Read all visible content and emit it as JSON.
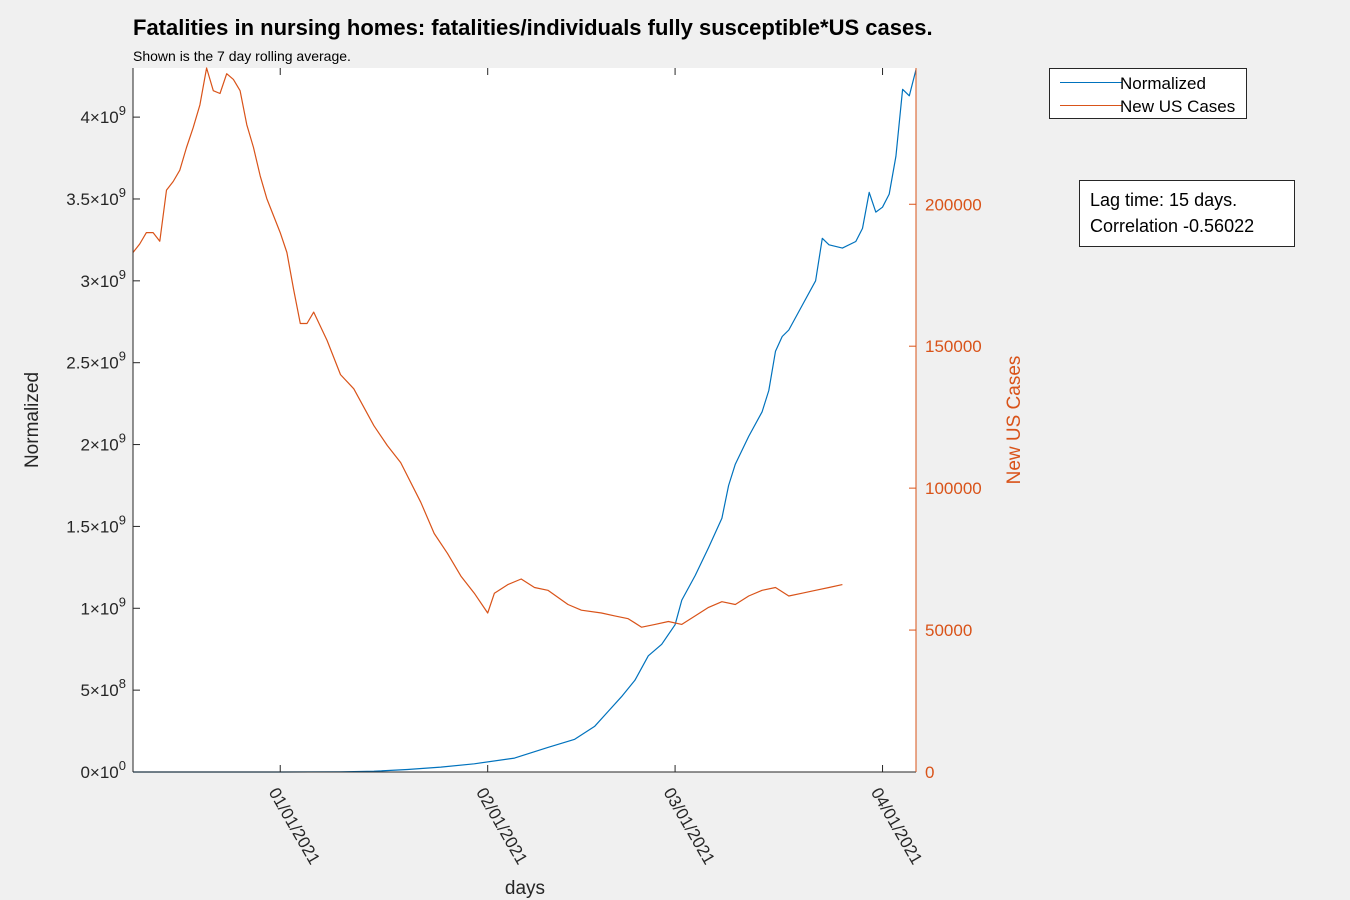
{
  "chart_data": {
    "type": "line",
    "title": "Fatalities in nursing homes: fatalities/individuals fully susceptible*US cases.",
    "subtitle": "Shown is the 7 day rolling average.",
    "xlabel": "days",
    "ylabel_left": "Normalized",
    "ylabel_right": "New US Cases",
    "x_range": [
      "2020-12-10",
      "2021-04-06"
    ],
    "x_ticks": [
      "01/01/2021",
      "02/01/2021",
      "03/01/2021",
      "04/01/2021"
    ],
    "y_left_range": [
      0,
      4300000000
    ],
    "y_left_ticks": [
      {
        "value": 0,
        "mant": "0",
        "exp": "0"
      },
      {
        "value": 500000000,
        "mant": "5",
        "exp": "8"
      },
      {
        "value": 1000000000,
        "mant": "1",
        "exp": "9"
      },
      {
        "value": 1500000000,
        "mant": "1.5",
        "exp": "9"
      },
      {
        "value": 2000000000,
        "mant": "2",
        "exp": "9"
      },
      {
        "value": 2500000000,
        "mant": "2.5",
        "exp": "9"
      },
      {
        "value": 3000000000,
        "mant": "3",
        "exp": "9"
      },
      {
        "value": 3500000000,
        "mant": "3.5",
        "exp": "9"
      },
      {
        "value": 4000000000,
        "mant": "4",
        "exp": "9"
      }
    ],
    "y_right_range": [
      0,
      248000
    ],
    "y_right_ticks": [
      "0",
      "50000",
      "100000",
      "150000",
      "200000"
    ],
    "series": [
      {
        "name": "Normalized",
        "axis": "left",
        "color": "#0072BD",
        "points": [
          [
            "2020-12-10",
            0
          ],
          [
            "2021-01-01",
            0
          ],
          [
            "2021-01-10",
            1000000
          ],
          [
            "2021-01-15",
            5000000
          ],
          [
            "2021-01-20",
            15000000
          ],
          [
            "2021-01-25",
            30000000
          ],
          [
            "2021-01-30",
            50000000
          ],
          [
            "2021-02-05",
            85000000
          ],
          [
            "2021-02-10",
            150000000
          ],
          [
            "2021-02-14",
            200000000
          ],
          [
            "2021-02-17",
            280000000
          ],
          [
            "2021-02-19",
            370000000
          ],
          [
            "2021-02-21",
            460000000
          ],
          [
            "2021-02-23",
            560000000
          ],
          [
            "2021-02-25",
            710000000
          ],
          [
            "2021-02-27",
            780000000
          ],
          [
            "2021-03-01",
            900000000
          ],
          [
            "2021-03-02",
            1050000000
          ],
          [
            "2021-03-04",
            1200000000
          ],
          [
            "2021-03-06",
            1370000000
          ],
          [
            "2021-03-08",
            1550000000
          ],
          [
            "2021-03-09",
            1750000000
          ],
          [
            "2021-03-10",
            1880000000
          ],
          [
            "2021-03-12",
            2050000000
          ],
          [
            "2021-03-14",
            2200000000
          ],
          [
            "2021-03-15",
            2330000000
          ],
          [
            "2021-03-16",
            2570000000
          ],
          [
            "2021-03-17",
            2660000000
          ],
          [
            "2021-03-18",
            2700000000
          ],
          [
            "2021-03-20",
            2850000000
          ],
          [
            "2021-03-22",
            3000000000
          ],
          [
            "2021-03-23",
            3260000000
          ],
          [
            "2021-03-24",
            3220000000
          ],
          [
            "2021-03-26",
            3200000000
          ],
          [
            "2021-03-28",
            3240000000
          ],
          [
            "2021-03-29",
            3320000000
          ],
          [
            "2021-03-30",
            3540000000
          ],
          [
            "2021-03-31",
            3420000000
          ],
          [
            "2021-04-01",
            3450000000
          ],
          [
            "2021-04-02",
            3530000000
          ],
          [
            "2021-04-03",
            3760000000
          ],
          [
            "2021-04-04",
            4170000000
          ],
          [
            "2021-04-05",
            4130000000
          ],
          [
            "2021-04-06",
            4290000000
          ]
        ]
      },
      {
        "name": "New US Cases",
        "axis": "right",
        "color": "#D95319",
        "points": [
          [
            "2020-12-10",
            183000
          ],
          [
            "2020-12-11",
            186000
          ],
          [
            "2020-12-12",
            190000
          ],
          [
            "2020-12-13",
            190000
          ],
          [
            "2020-12-14",
            187000
          ],
          [
            "2020-12-15",
            205000
          ],
          [
            "2020-12-16",
            208000
          ],
          [
            "2020-12-17",
            212000
          ],
          [
            "2020-12-18",
            220000
          ],
          [
            "2020-12-19",
            227000
          ],
          [
            "2020-12-20",
            235000
          ],
          [
            "2020-12-21",
            248000
          ],
          [
            "2020-12-22",
            240000
          ],
          [
            "2020-12-23",
            239000
          ],
          [
            "2020-12-24",
            246000
          ],
          [
            "2020-12-25",
            244000
          ],
          [
            "2020-12-26",
            240000
          ],
          [
            "2020-12-27",
            228000
          ],
          [
            "2020-12-28",
            220000
          ],
          [
            "2020-12-29",
            210000
          ],
          [
            "2020-12-30",
            202000
          ],
          [
            "2020-12-31",
            196000
          ],
          [
            "2021-01-01",
            190000
          ],
          [
            "2021-01-02",
            183000
          ],
          [
            "2021-01-03",
            170000
          ],
          [
            "2021-01-04",
            158000
          ],
          [
            "2021-01-05",
            158000
          ],
          [
            "2021-01-06",
            162000
          ],
          [
            "2021-01-08",
            152000
          ],
          [
            "2021-01-10",
            140000
          ],
          [
            "2021-01-12",
            135000
          ],
          [
            "2021-01-15",
            122000
          ],
          [
            "2021-01-17",
            115000
          ],
          [
            "2021-01-19",
            109000
          ],
          [
            "2021-01-22",
            95000
          ],
          [
            "2021-01-24",
            84000
          ],
          [
            "2021-01-26",
            77000
          ],
          [
            "2021-01-28",
            69000
          ],
          [
            "2021-01-30",
            63000
          ],
          [
            "2021-02-01",
            56000
          ],
          [
            "2021-02-02",
            63000
          ],
          [
            "2021-02-04",
            66000
          ],
          [
            "2021-02-06",
            68000
          ],
          [
            "2021-02-08",
            65000
          ],
          [
            "2021-02-10",
            64000
          ],
          [
            "2021-02-13",
            59000
          ],
          [
            "2021-02-15",
            57000
          ],
          [
            "2021-02-18",
            56000
          ],
          [
            "2021-02-20",
            55000
          ],
          [
            "2021-02-22",
            54000
          ],
          [
            "2021-02-24",
            51000
          ],
          [
            "2021-02-26",
            52000
          ],
          [
            "2021-02-28",
            53000
          ],
          [
            "2021-03-02",
            52000
          ],
          [
            "2021-03-04",
            55000
          ],
          [
            "2021-03-06",
            58000
          ],
          [
            "2021-03-08",
            60000
          ],
          [
            "2021-03-10",
            59000
          ],
          [
            "2021-03-12",
            62000
          ],
          [
            "2021-03-14",
            64000
          ],
          [
            "2021-03-16",
            65000
          ],
          [
            "2021-03-18",
            62000
          ],
          [
            "2021-03-20",
            63000
          ],
          [
            "2021-03-22",
            64000
          ],
          [
            "2021-03-24",
            65000
          ],
          [
            "2021-03-26",
            66000
          ]
        ]
      }
    ],
    "legend": {
      "position": "outside-top-right",
      "entries": [
        "Normalized",
        "New US Cases"
      ]
    },
    "annotations": [
      "Lag time: 15 days.",
      "Correlation -0.56022"
    ],
    "grid": false
  }
}
